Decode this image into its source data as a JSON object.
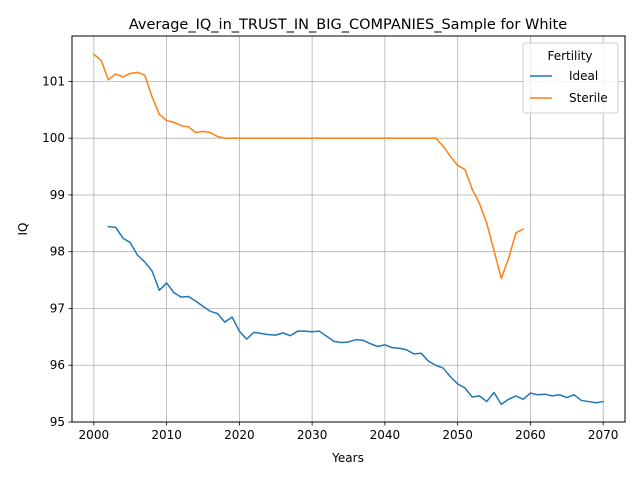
{
  "chart_data": {
    "type": "line",
    "title": "Average_IQ_in_TRUST_IN_BIG_COMPANIES_Sample for White",
    "xlabel": "Years",
    "ylabel": "IQ",
    "xlim": [
      1997,
      2073
    ],
    "ylim": [
      95.0,
      101.8
    ],
    "xticks": [
      2000,
      2010,
      2020,
      2030,
      2040,
      2050,
      2060,
      2070
    ],
    "yticks": [
      95,
      96,
      97,
      98,
      99,
      100,
      101
    ],
    "grid": true,
    "legend": {
      "title": "Fertility",
      "placement": "top-right"
    },
    "series": [
      {
        "name": "Ideal",
        "color": "#1f77b4",
        "x": [
          2002,
          2003,
          2004,
          2005,
          2006,
          2007,
          2008,
          2009,
          2010,
          2011,
          2012,
          2013,
          2014,
          2015,
          2016,
          2017,
          2018,
          2019,
          2020,
          2021,
          2022,
          2023,
          2024,
          2025,
          2026,
          2027,
          2028,
          2029,
          2030,
          2031,
          2032,
          2033,
          2034,
          2035,
          2036,
          2037,
          2038,
          2039,
          2040,
          2041,
          2042,
          2043,
          2044,
          2045,
          2046,
          2047,
          2048,
          2049,
          2050,
          2051,
          2052,
          2053,
          2054,
          2055,
          2056,
          2057,
          2058,
          2059,
          2060,
          2061,
          2062,
          2063,
          2064,
          2065,
          2066,
          2067,
          2068,
          2069,
          2070
        ],
        "y": [
          98.44,
          98.43,
          98.24,
          98.16,
          97.94,
          97.82,
          97.66,
          97.32,
          97.45,
          97.28,
          97.2,
          97.21,
          97.13,
          97.04,
          96.95,
          96.91,
          96.76,
          96.85,
          96.6,
          96.46,
          96.58,
          96.56,
          96.54,
          96.53,
          96.57,
          96.52,
          96.6,
          96.6,
          96.59,
          96.6,
          96.51,
          96.42,
          96.4,
          96.41,
          96.45,
          96.44,
          96.38,
          96.33,
          96.36,
          96.31,
          96.3,
          96.27,
          96.2,
          96.21,
          96.07,
          96.0,
          95.95,
          95.8,
          95.67,
          95.6,
          95.44,
          95.46,
          95.36,
          95.52,
          95.31,
          95.4,
          95.46,
          95.4,
          95.51,
          95.48,
          95.49,
          95.46,
          95.48,
          95.43,
          95.48,
          95.38,
          95.36,
          95.34,
          95.36
        ]
      },
      {
        "name": "Sterile",
        "color": "#ff7f0e",
        "x": [
          2000,
          2001,
          2002,
          2003,
          2004,
          2005,
          2006,
          2007,
          2008,
          2009,
          2010,
          2011,
          2012,
          2013,
          2014,
          2015,
          2016,
          2017,
          2018,
          2019,
          2020,
          2021,
          2022,
          2023,
          2024,
          2025,
          2026,
          2027,
          2028,
          2029,
          2030,
          2031,
          2032,
          2033,
          2034,
          2035,
          2036,
          2037,
          2038,
          2039,
          2040,
          2041,
          2042,
          2043,
          2044,
          2045,
          2046,
          2047,
          2048,
          2049,
          2050,
          2051,
          2052,
          2053,
          2054,
          2055,
          2056,
          2057,
          2058,
          2059
        ],
        "y": [
          101.48,
          101.37,
          101.03,
          101.13,
          101.08,
          101.14,
          101.16,
          101.11,
          100.73,
          100.42,
          100.31,
          100.28,
          100.22,
          100.2,
          100.1,
          100.12,
          100.1,
          100.03,
          100.0,
          100.0,
          100.0,
          100.0,
          100.0,
          100.0,
          100.0,
          100.0,
          100.0,
          100.0,
          100.0,
          100.0,
          100.0,
          100.0,
          100.0,
          100.0,
          100.0,
          100.0,
          100.0,
          100.0,
          100.0,
          100.0,
          100.0,
          100.0,
          100.0,
          100.0,
          100.0,
          100.0,
          100.0,
          100.0,
          99.86,
          99.68,
          99.52,
          99.45,
          99.1,
          98.85,
          98.5,
          98.02,
          97.53,
          97.88,
          98.33,
          98.4
        ]
      }
    ]
  }
}
